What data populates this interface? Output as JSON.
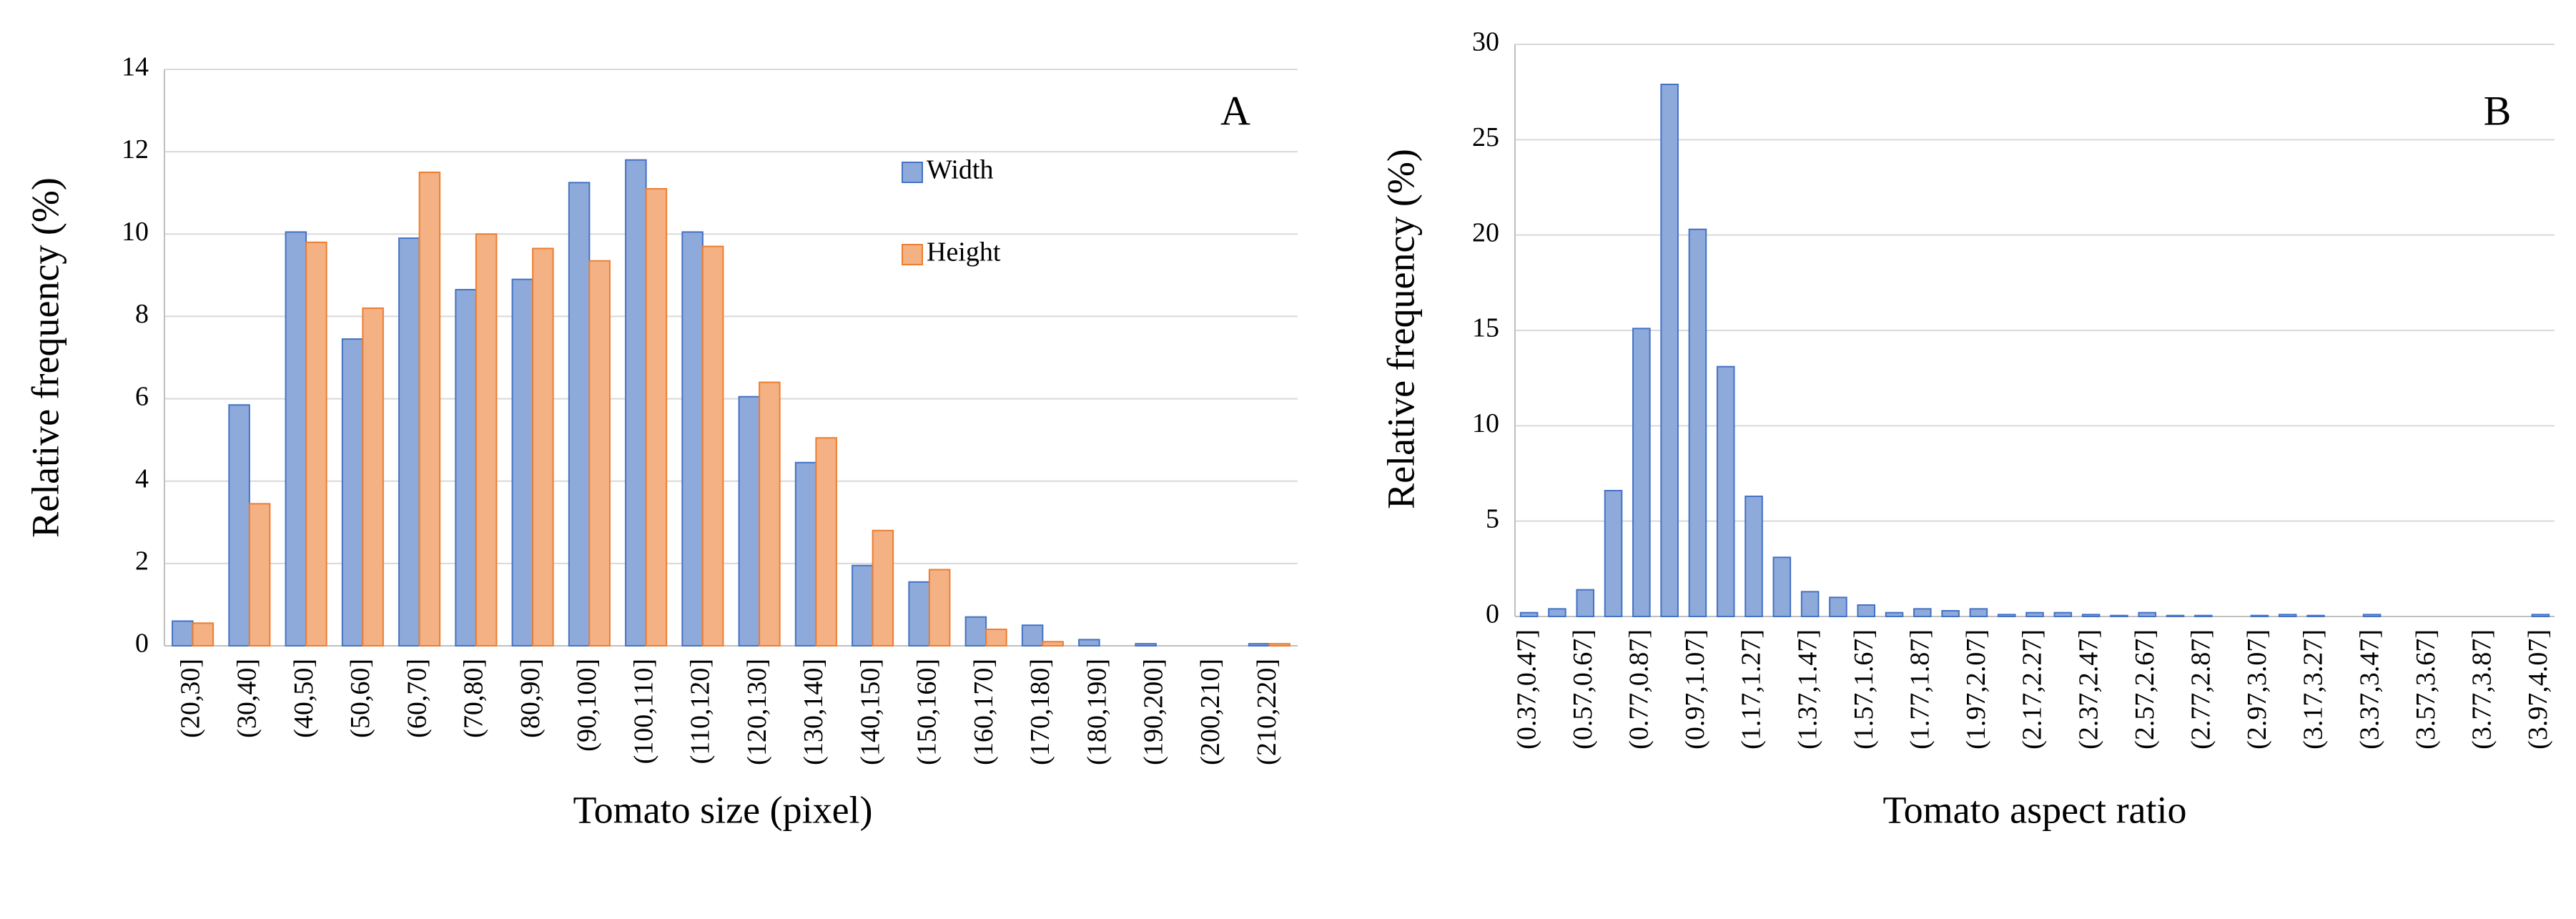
{
  "chart_data": [
    {
      "type": "bar",
      "title": "A",
      "xlabel": "Tomato size (pixel)",
      "ylabel": "Relative frequency (%)",
      "categories": [
        "(20,30]",
        "(30,40]",
        "(40,50]",
        "(50,60]",
        "(60,70]",
        "(70,80]",
        "(80,90]",
        "(90,100]",
        "(100,110]",
        "(110,120]",
        "(120,130]",
        "(130,140]",
        "(140,150]",
        "(150,160]",
        "(160,170]",
        "(170,180]",
        "(180,190]",
        "(190,200]",
        "(200,210]",
        "(210,220]"
      ],
      "series": [
        {
          "name": "Width",
          "color": "#8eaadb",
          "values": [
            0.6,
            5.85,
            10.05,
            7.45,
            9.9,
            8.65,
            8.9,
            11.25,
            11.8,
            10.05,
            6.05,
            4.45,
            1.95,
            1.55,
            0.7,
            0.5,
            0.15,
            0.05,
            0,
            0.05
          ]
        },
        {
          "name": "Height",
          "color": "#f4b183",
          "values": [
            0.55,
            3.45,
            9.8,
            8.2,
            11.5,
            10,
            9.65,
            9.35,
            11.1,
            9.7,
            6.4,
            5.05,
            2.8,
            1.85,
            0.4,
            0.1,
            0,
            0,
            0,
            0.05
          ]
        }
      ],
      "ylim": [
        0,
        14
      ],
      "yticks": [
        0,
        2,
        4,
        6,
        8,
        10,
        12,
        14
      ],
      "grid": true
    },
    {
      "type": "bar",
      "title": "B",
      "xlabel": "Tomato aspect ratio",
      "ylabel": "Relative  frequency (%)",
      "categories": [
        "(0.37,0.47]",
        null,
        "(0.57,0.67]",
        null,
        "(0.77,0.87]",
        null,
        "(0.97,1.07]",
        null,
        "(1.17,1.27]",
        null,
        "(1.37,1.47]",
        null,
        "(1.57,1.67]",
        null,
        "(1.77,1.87]",
        null,
        "(1.97,2.07]",
        null,
        "(2.17,2.27]",
        null,
        "(2.37,2.47]",
        null,
        "(2.57,2.67]",
        null,
        "(2.77,2.87]",
        null,
        "(2.97,3.07]",
        null,
        "(3.17,3.27]",
        null,
        "(3.37,3.47]",
        null,
        "(3.57,3.67]",
        null,
        "(3.77,3.87]",
        null,
        "(3.97,4.07]"
      ],
      "values": [
        0.2,
        0.4,
        1.4,
        6.6,
        15.1,
        27.9,
        20.3,
        13.1,
        6.3,
        3.1,
        1.3,
        1.0,
        0.6,
        0.2,
        0.4,
        0.3,
        0.4,
        0.1,
        0.2,
        0.2,
        0.1,
        0.05,
        0.2,
        0.05,
        0.05,
        0,
        0.05,
        0.1,
        0.05,
        0,
        0.1,
        0,
        0,
        0,
        0,
        0,
        0.1
      ],
      "color": "#8eaadb",
      "ylim": [
        0,
        30
      ],
      "yticks": [
        0,
        5,
        10,
        15,
        20,
        25,
        30
      ],
      "grid": true
    }
  ]
}
